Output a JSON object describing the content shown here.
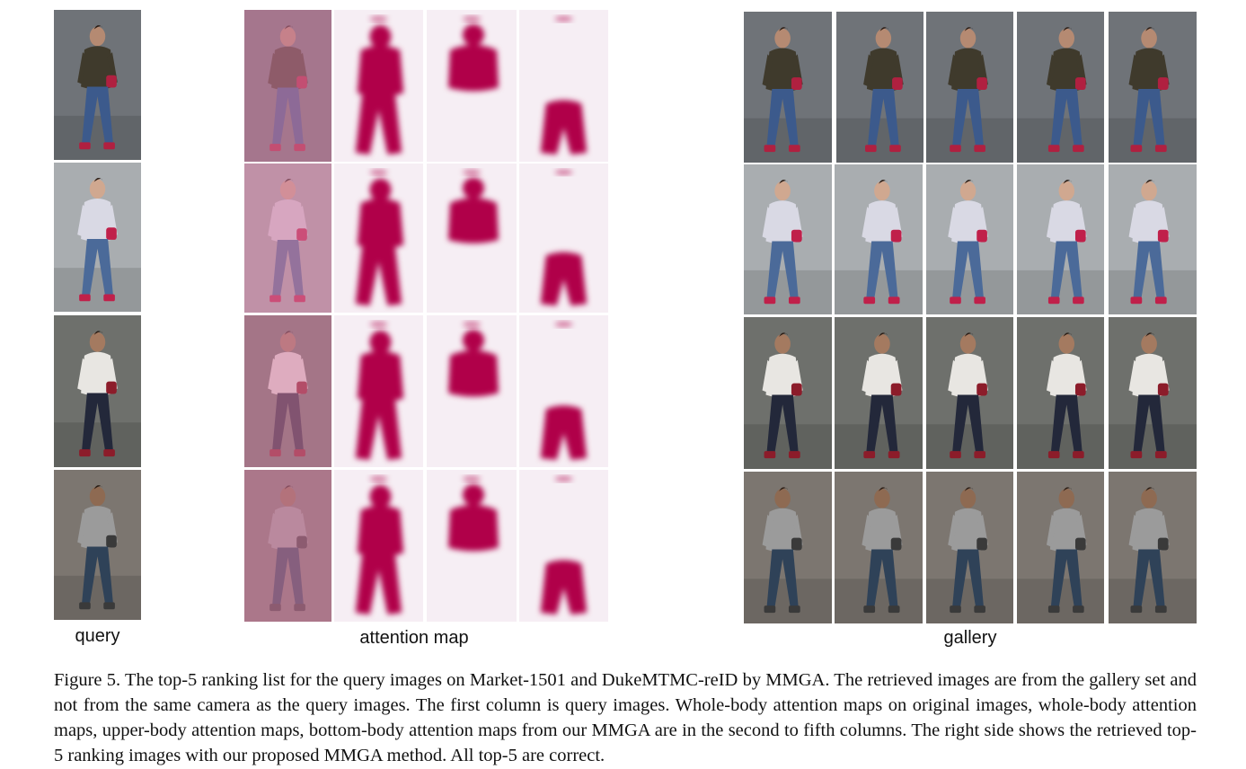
{
  "labels": {
    "query": "query",
    "attention": "attention map",
    "gallery": "gallery"
  },
  "caption": "Figure 5. The top-5 ranking list for the query images on Market-1501 and DukeMTMC-reID by MMGA. The retrieved images are from the gallery set and not from the same camera as the query images. The first column is query images. Whole-body attention maps on original images, whole-body attention maps, upper-body attention maps, bottom-body attention maps from our MMGA are in the second to fifth columns. The right side shows the retrieved top-5 ranking images with our proposed MMGA method. All top-5 are correct.",
  "rows": [
    {
      "bg": "#6f7378",
      "top": "#3f3a2c",
      "pants": "#3c5a8c",
      "skin": "#b58a72",
      "accent": "#b02040"
    },
    {
      "bg": "#a9adb0",
      "top": "#d9d9e4",
      "pants": "#4b6a99",
      "skin": "#d0a890",
      "accent": "#c0204a"
    },
    {
      "bg": "#6e706c",
      "top": "#e8e6e2",
      "pants": "#23283a",
      "skin": "#a47a60",
      "accent": "#8c1c2a"
    },
    {
      "bg": "#7c7670",
      "top": "#9b9b9b",
      "pants": "#2f4258",
      "skin": "#8e6a52",
      "accent": "#3a3a3a"
    }
  ],
  "attention_color": "#b0004a"
}
